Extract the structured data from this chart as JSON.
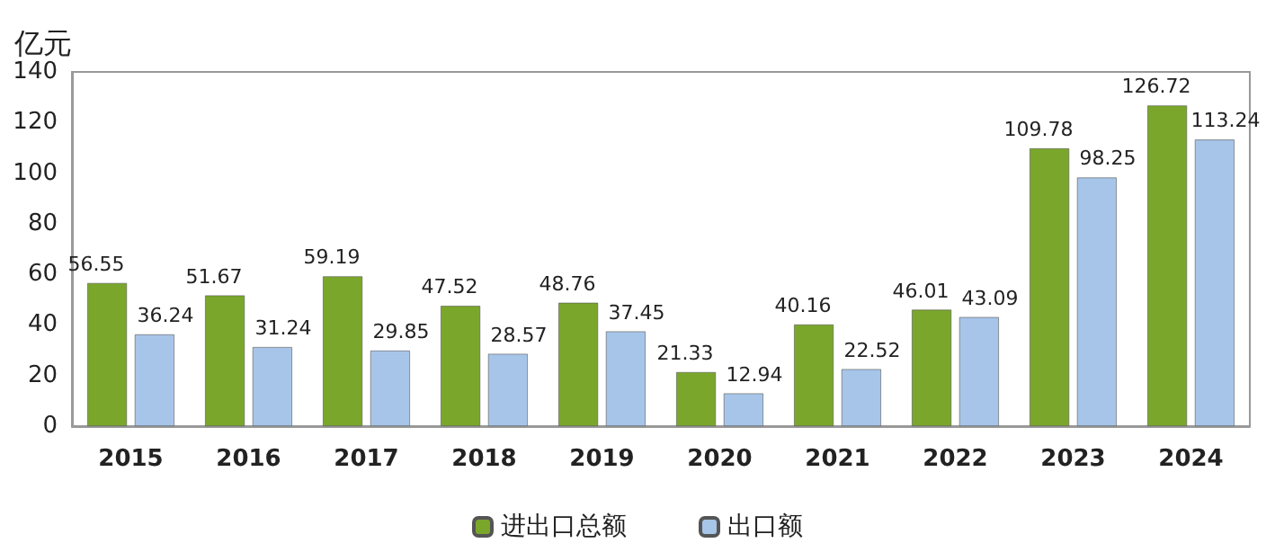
{
  "chart_data": {
    "type": "bar",
    "ylabel": "亿元",
    "categories": [
      "2015",
      "2016",
      "2017",
      "2018",
      "2019",
      "2020",
      "2021",
      "2022",
      "2023",
      "2024"
    ],
    "series": [
      {
        "name": "进出口总额",
        "color": "#7aa72b",
        "values": [
          56.55,
          51.67,
          59.19,
          47.52,
          48.76,
          21.33,
          40.16,
          46.01,
          109.78,
          126.72
        ]
      },
      {
        "name": "出口额",
        "color": "#a7c5e8",
        "values": [
          36.24,
          31.24,
          29.85,
          28.57,
          37.45,
          12.94,
          22.52,
          43.09,
          98.25,
          113.24
        ]
      }
    ],
    "ylim": [
      0,
      140
    ],
    "yticks": [
      0,
      20,
      40,
      60,
      80,
      100,
      120,
      140
    ],
    "grid": false,
    "legend": "bottom",
    "data_labels": true
  }
}
